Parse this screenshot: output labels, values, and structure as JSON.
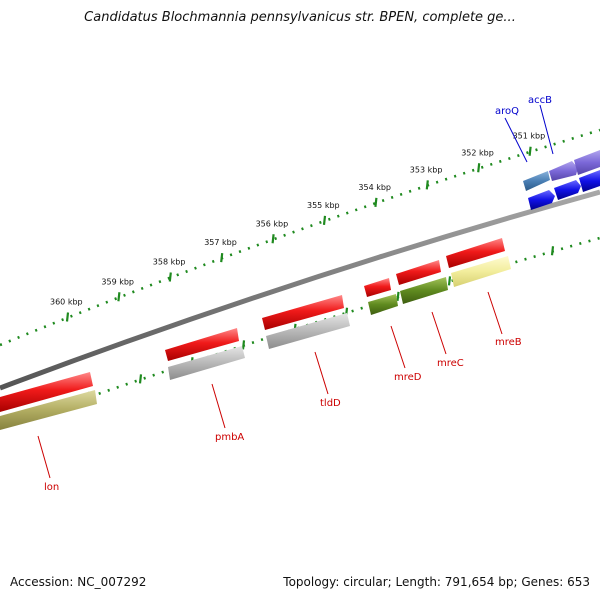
{
  "title": "Candidatus Blochmannia pennsylvanicus str. BPEN, complete ge...",
  "footer": {
    "accession": "Accession: NC_007292",
    "summary": "Topology: circular; Length: 791,654 bp; Genes: 653"
  },
  "colors": {
    "background": "#ffffff",
    "backbone": "#7a7a7a",
    "tick_dots": "#1f8a1f",
    "forward_label": "#0000cc",
    "reverse_label": "#cc0000",
    "feature_red": "#e8141b",
    "feature_grey": "#b4b4b4",
    "feature_olive": "#b5b06a",
    "feature_green": "#5f8a1f",
    "feature_yellow": "#f0ec9a",
    "feature_blue": "#1010e0",
    "feature_purple": "#7b68d8",
    "feature_steelblue": "#4a7fb5"
  },
  "scale_ticks": [
    {
      "label": "360 kbp",
      "pos_kbp": 360
    },
    {
      "label": "359 kbp",
      "pos_kbp": 359
    },
    {
      "label": "358 kbp",
      "pos_kbp": 358
    },
    {
      "label": "357 kbp",
      "pos_kbp": 357
    },
    {
      "label": "356 kbp",
      "pos_kbp": 356
    },
    {
      "label": "355 kbp",
      "pos_kbp": 355
    },
    {
      "label": "354 kbp",
      "pos_kbp": 354
    },
    {
      "label": "353 kbp",
      "pos_kbp": 353
    },
    {
      "label": "352 kbp",
      "pos_kbp": 352
    },
    {
      "label": "351 kbp",
      "pos_kbp": 351
    }
  ],
  "forward_genes": [
    {
      "name": "aroQ",
      "label_color": "blue"
    },
    {
      "name": "accB",
      "label_color": "blue"
    }
  ],
  "reverse_genes": [
    {
      "name": "lon",
      "label_color": "red"
    },
    {
      "name": "pmbA",
      "label_color": "red"
    },
    {
      "name": "tldD",
      "label_color": "red"
    },
    {
      "name": "mreD",
      "label_color": "red"
    },
    {
      "name": "mreC",
      "label_color": "red"
    },
    {
      "name": "mreB",
      "label_color": "red"
    }
  ]
}
